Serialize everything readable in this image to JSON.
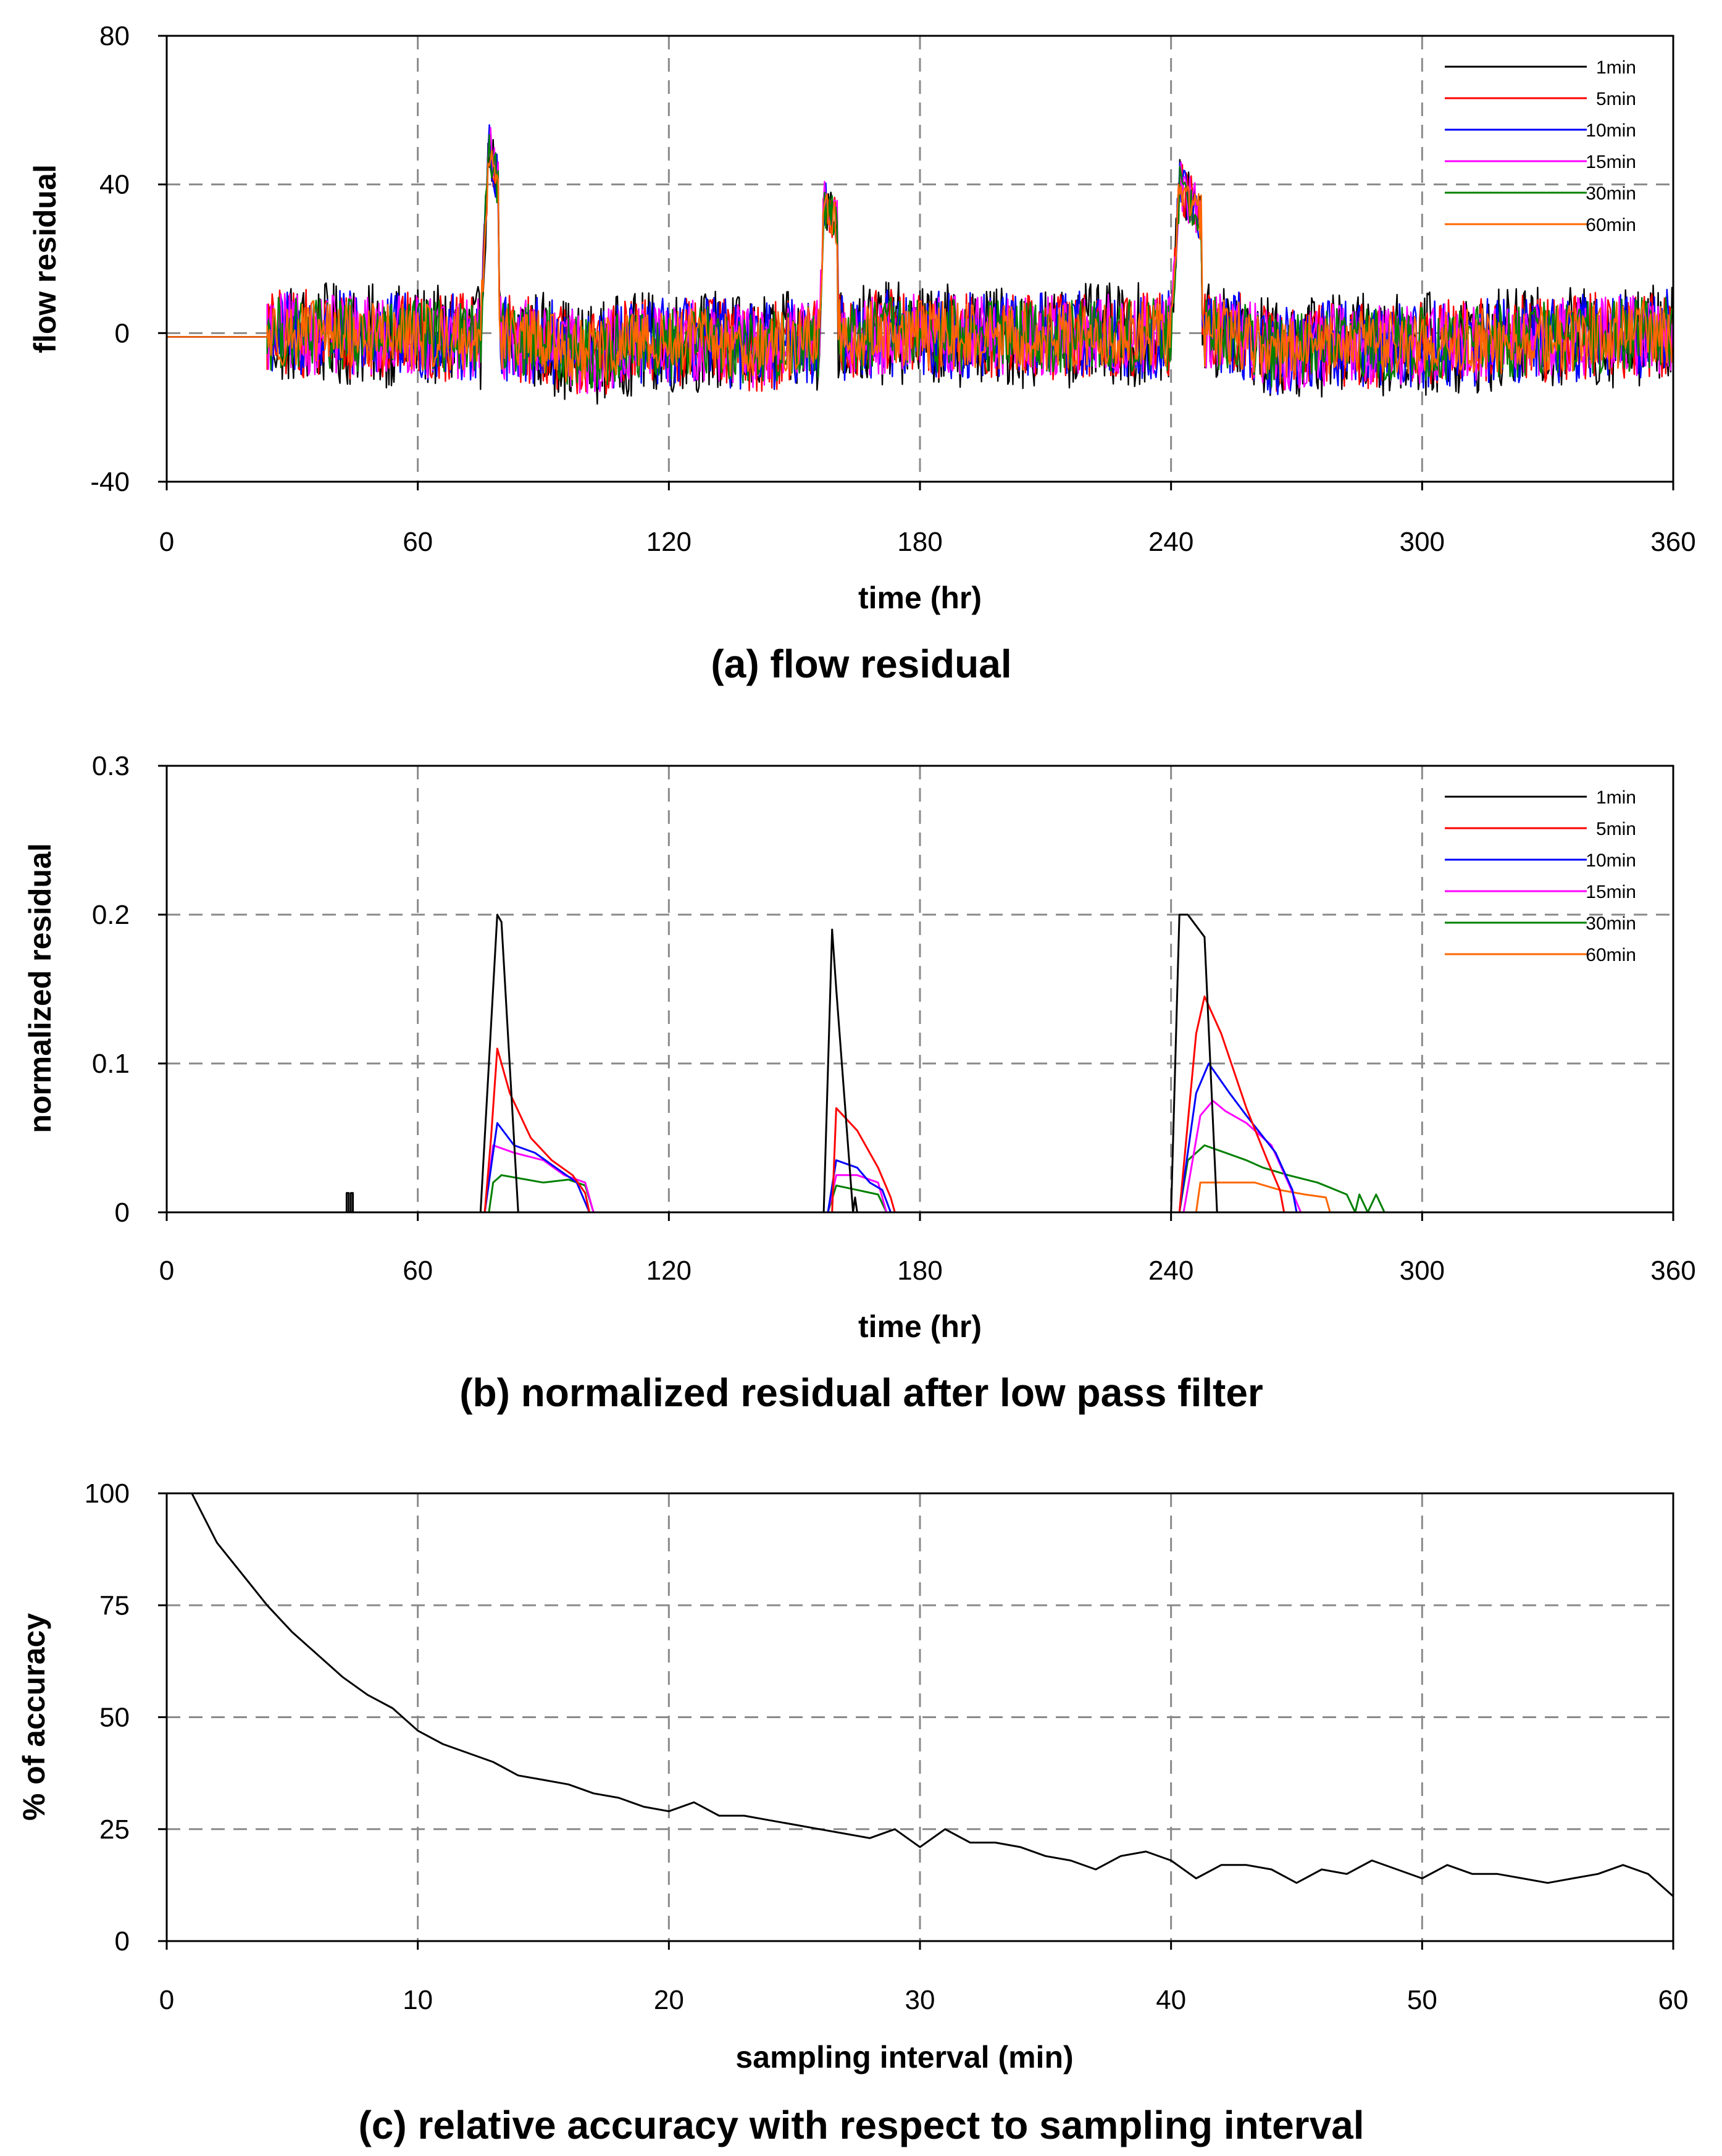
{
  "figure_title": "Three-panel figure: flow residual, normalized residual, relative accuracy",
  "colors": {
    "1min": "#000000",
    "5min": "#ff0000",
    "10min": "#0000ff",
    "15min": "#ff00ff",
    "30min": "#008000",
    "60min": "#ff6600",
    "grid": "#8a8a8a"
  },
  "chart_data": [
    {
      "type": "line",
      "id": "panel_a",
      "title": "(a) flow residual",
      "xlabel": "time (hr)",
      "ylabel": "flow residual",
      "xlim": [
        0,
        360
      ],
      "ylim": [
        -40,
        80
      ],
      "xticks": [
        0,
        60,
        120,
        180,
        240,
        300,
        360
      ],
      "yticks": [
        -40,
        0,
        40,
        80
      ],
      "grid": true,
      "legend_position": "top-right",
      "noise": {
        "start_hr": 24,
        "end_hr": 360,
        "amplitude_by_series": {
          "1min": 14,
          "5min": 12,
          "10min": 12,
          "15min": 11,
          "30min": 10,
          "60min": 9
        },
        "drift": [
          [
            24,
            0
          ],
          [
            60,
            -1
          ],
          [
            90,
            -2
          ],
          [
            100,
            -6
          ],
          [
            110,
            -3
          ],
          [
            130,
            -2
          ],
          [
            140,
            -4
          ],
          [
            170,
            0
          ],
          [
            200,
            -1
          ],
          [
            255,
            0
          ],
          [
            265,
            -5
          ],
          [
            280,
            -3
          ],
          [
            300,
            -3
          ],
          [
            360,
            0
          ]
        ]
      },
      "initial_flat_segment": {
        "x": [
          0,
          24
        ],
        "y": [
          -1,
          -1
        ]
      },
      "events": [
        {
          "start_hr": 75,
          "peak_hr": 77,
          "end_hr": 80,
          "level": 50
        },
        {
          "start_hr": 156,
          "peak_hr": 157,
          "end_hr": 161,
          "level": 36
        },
        {
          "start_hr": 240,
          "peak_hr": 242,
          "end_hr": 248,
          "level": 40
        }
      ],
      "series": [
        {
          "name": "1min",
          "legend": "1min"
        },
        {
          "name": "5min",
          "legend": "5min"
        },
        {
          "name": "10min",
          "legend": "10min"
        },
        {
          "name": "15min",
          "legend": "15min"
        },
        {
          "name": "30min",
          "legend": "30min"
        },
        {
          "name": "60min",
          "legend": "60min"
        }
      ]
    },
    {
      "type": "line",
      "id": "panel_b",
      "title": "(b) normalized residual after low pass filter",
      "xlabel": "time (hr)",
      "ylabel": "normalized residual",
      "xlim": [
        0,
        360
      ],
      "ylim": [
        0,
        0.3
      ],
      "xticks": [
        0,
        60,
        120,
        180,
        240,
        300,
        360
      ],
      "yticks": [
        0,
        0.1,
        0.2,
        0.3
      ],
      "grid": true,
      "legend_position": "top-right",
      "series": [
        {
          "name": "1min",
          "legend": "1min",
          "points": [
            [
              0,
              0
            ],
            [
              43,
              0
            ],
            [
              43,
              0.013
            ],
            [
              43.5,
              0.013
            ],
            [
              43.5,
              0
            ],
            [
              44,
              0
            ],
            [
              44,
              0.013
            ],
            [
              44.5,
              0.013
            ],
            [
              44.5,
              0
            ],
            [
              75,
              0
            ],
            [
              79,
              0.2
            ],
            [
              80,
              0.195
            ],
            [
              84,
              0
            ],
            [
              157,
              0
            ],
            [
              159,
              0.19
            ],
            [
              160,
              0.15
            ],
            [
              164,
              0
            ],
            [
              164.5,
              0.01
            ],
            [
              165,
              0
            ],
            [
              240,
              0
            ],
            [
              242,
              0.2
            ],
            [
              244,
              0.2
            ],
            [
              248,
              0.185
            ],
            [
              251,
              0
            ],
            [
              360,
              0
            ]
          ]
        },
        {
          "name": "5min",
          "legend": "5min",
          "points": [
            [
              0,
              0
            ],
            [
              76,
              0
            ],
            [
              77.5,
              0.05
            ],
            [
              79,
              0.11
            ],
            [
              82,
              0.08
            ],
            [
              87,
              0.05
            ],
            [
              92,
              0.035
            ],
            [
              97,
              0.025
            ],
            [
              100,
              0.013
            ],
            [
              101,
              0
            ],
            [
              159,
              0
            ],
            [
              160,
              0.07
            ],
            [
              165,
              0.055
            ],
            [
              170,
              0.03
            ],
            [
              173,
              0.01
            ],
            [
              174,
              0
            ],
            [
              242,
              0
            ],
            [
              246,
              0.12
            ],
            [
              248,
              0.145
            ],
            [
              252,
              0.12
            ],
            [
              258,
              0.07
            ],
            [
              263,
              0.035
            ],
            [
              266,
              0.015
            ],
            [
              267,
              0
            ],
            [
              360,
              0
            ]
          ]
        },
        {
          "name": "10min",
          "legend": "10min",
          "points": [
            [
              0,
              0
            ],
            [
              76,
              0
            ],
            [
              79,
              0.06
            ],
            [
              83,
              0.045
            ],
            [
              88,
              0.04
            ],
            [
              93,
              0.03
            ],
            [
              98,
              0.02
            ],
            [
              101,
              0
            ],
            [
              158,
              0
            ],
            [
              160,
              0.035
            ],
            [
              165,
              0.03
            ],
            [
              168,
              0.02
            ],
            [
              171,
              0.015
            ],
            [
              173,
              0
            ],
            [
              242,
              0
            ],
            [
              246,
              0.08
            ],
            [
              249,
              0.1
            ],
            [
              254,
              0.08
            ],
            [
              258,
              0.065
            ],
            [
              265,
              0.04
            ],
            [
              269,
              0.015
            ],
            [
              270,
              0
            ],
            [
              360,
              0
            ]
          ]
        },
        {
          "name": "15min",
          "legend": "15min",
          "points": [
            [
              0,
              0
            ],
            [
              76,
              0
            ],
            [
              78,
              0.045
            ],
            [
              83,
              0.04
            ],
            [
              90,
              0.035
            ],
            [
              95,
              0.025
            ],
            [
              100,
              0.02
            ],
            [
              102,
              0
            ],
            [
              158,
              0
            ],
            [
              160,
              0.025
            ],
            [
              165,
              0.025
            ],
            [
              170,
              0.02
            ],
            [
              172,
              0
            ],
            [
              243,
              0
            ],
            [
              247,
              0.065
            ],
            [
              250,
              0.075
            ],
            [
              253,
              0.068
            ],
            [
              258,
              0.06
            ],
            [
              264,
              0.045
            ],
            [
              268,
              0.02
            ],
            [
              271,
              0
            ],
            [
              360,
              0
            ]
          ]
        },
        {
          "name": "30min",
          "legend": "30min",
          "points": [
            [
              0,
              0
            ],
            [
              77,
              0
            ],
            [
              78,
              0.02
            ],
            [
              80,
              0.025
            ],
            [
              86,
              0.022
            ],
            [
              90,
              0.02
            ],
            [
              96,
              0.022
            ],
            [
              100,
              0.018
            ],
            [
              102,
              0
            ],
            [
              158,
              0
            ],
            [
              160,
              0.018
            ],
            [
              165,
              0.015
            ],
            [
              170,
              0.012
            ],
            [
              172,
              0
            ],
            [
              242,
              0
            ],
            [
              244,
              0.035
            ],
            [
              248,
              0.045
            ],
            [
              253,
              0.04
            ],
            [
              258,
              0.035
            ],
            [
              262,
              0.03
            ],
            [
              268,
              0.025
            ],
            [
              275,
              0.02
            ],
            [
              282,
              0.012
            ],
            [
              284,
              0
            ],
            [
              285,
              0.012
            ],
            [
              287,
              0
            ],
            [
              289,
              0.012
            ],
            [
              291,
              0
            ],
            [
              292,
              0
            ],
            [
              360,
              0
            ]
          ]
        },
        {
          "name": "60min",
          "legend": "60min",
          "points": [
            [
              0,
              0
            ],
            [
              246,
              0
            ],
            [
              247,
              0.02
            ],
            [
              260,
              0.02
            ],
            [
              266,
              0.015
            ],
            [
              272,
              0.012
            ],
            [
              277,
              0.01
            ],
            [
              278,
              0
            ],
            [
              360,
              0
            ]
          ]
        }
      ]
    },
    {
      "type": "line",
      "id": "panel_c",
      "title": "(c) relative accuracy with respect to sampling interval",
      "xlabel": "sampling interval (min)",
      "ylabel": "% of accuracy",
      "xlim": [
        0,
        60
      ],
      "ylim": [
        0,
        100
      ],
      "xticks": [
        0,
        10,
        20,
        30,
        40,
        50,
        60
      ],
      "yticks": [
        0,
        25,
        50,
        75,
        100
      ],
      "grid": true,
      "series": [
        {
          "name": "accuracy",
          "x": [
            1,
            2,
            3,
            4,
            5,
            6,
            7,
            8,
            9,
            10,
            11,
            12,
            13,
            14,
            15,
            16,
            17,
            18,
            19,
            20,
            21,
            22,
            23,
            24,
            25,
            26,
            27,
            28,
            29,
            30,
            31,
            32,
            33,
            34,
            35,
            36,
            37,
            38,
            39,
            40,
            41,
            42,
            43,
            44,
            45,
            46,
            47,
            48,
            49,
            50,
            51,
            52,
            53,
            54,
            55,
            56,
            57,
            58,
            59,
            60
          ],
          "y": [
            100,
            89,
            82,
            75,
            69,
            64,
            59,
            55,
            52,
            47,
            44,
            42,
            40,
            37,
            36,
            35,
            33,
            32,
            30,
            29,
            31,
            28,
            28,
            27,
            26,
            25,
            24,
            23,
            25,
            21,
            25,
            22,
            22,
            21,
            19,
            18,
            16,
            19,
            20,
            18,
            14,
            17,
            17,
            16,
            13,
            16,
            15,
            18,
            16,
            14,
            17,
            15,
            15,
            14,
            13,
            14,
            15,
            17,
            15,
            10
          ]
        }
      ]
    }
  ]
}
